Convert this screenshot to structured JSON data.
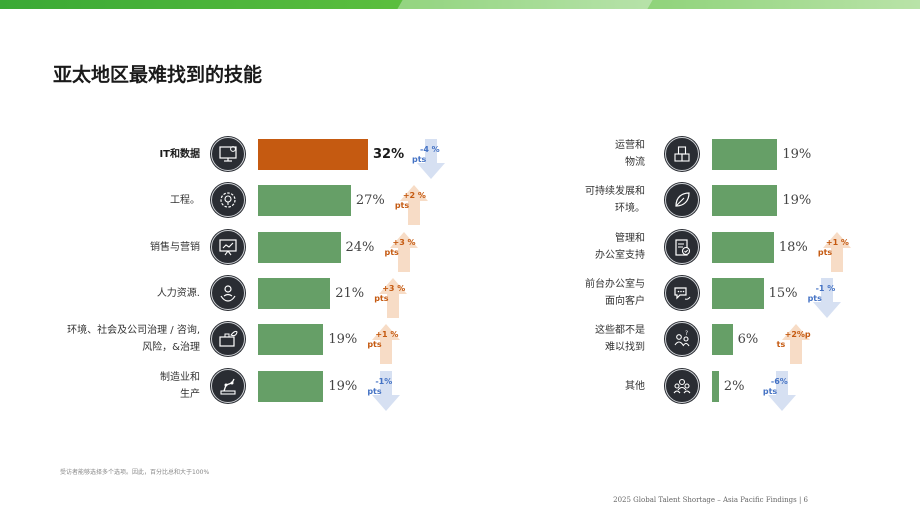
{
  "title": "亚太地区最难找到的技能",
  "footnote": "受访者能够选择多个选项。因此，百分比总和大于100%",
  "footer": "2025 Global Talent Shortage – Asia Pacific Findings | 6",
  "colors": {
    "bar": "#669f67",
    "highlight": "#c55a11",
    "up": "#c55a11",
    "down": "#4472c4",
    "icon_bg": "#2a2d33"
  },
  "chart_data": {
    "type": "bar",
    "orientation": "horizontal",
    "title": "亚太地区最难找到的技能",
    "left": [
      {
        "label": [
          "IT和数据"
        ],
        "icon": "computer-gear-icon",
        "value": 32,
        "pct": "32%",
        "delta": [
          "-4 %",
          "pts"
        ],
        "direction": "down",
        "highlight": true
      },
      {
        "label": [
          "工程。"
        ],
        "icon": "gear-bulb-icon",
        "value": 27,
        "pct": "27%",
        "delta": [
          "+2 %",
          "pts"
        ],
        "direction": "up"
      },
      {
        "label": [
          "销售与营销"
        ],
        "icon": "presentation-chart-icon",
        "value": 24,
        "pct": "24%",
        "delta": [
          "+3 %",
          "pts"
        ],
        "direction": "up"
      },
      {
        "label": [
          "人力资源."
        ],
        "icon": "person-hands-icon",
        "value": 21,
        "pct": "21%",
        "delta": [
          "+3 %",
          "pts"
        ],
        "direction": "up"
      },
      {
        "label": [
          "环境、社会及公司治理 / 咨询,",
          "风险，&治理"
        ],
        "icon": "briefcase-leaf-icon",
        "value": 19,
        "pct": "19%",
        "delta": [
          "+1 %",
          "pts"
        ],
        "direction": "up"
      },
      {
        "label": [
          "制造业和",
          "生产"
        ],
        "icon": "robot-arm-icon",
        "value": 19,
        "pct": "19%",
        "delta": [
          "-1%",
          "pts"
        ],
        "direction": "down"
      }
    ],
    "right": [
      {
        "label": [
          "运营和",
          "物流"
        ],
        "icon": "boxes-icon",
        "value": 19,
        "pct": "19%"
      },
      {
        "label": [
          "可持续发展和",
          "环境。"
        ],
        "icon": "leaf-icon",
        "value": 19,
        "pct": "19%"
      },
      {
        "label": [
          "管理和",
          "办公室支持"
        ],
        "icon": "clipboard-check-icon",
        "value": 18,
        "pct": "18%",
        "delta": [
          "+1 %",
          "pts"
        ],
        "direction": "up"
      },
      {
        "label": [
          "前台办公室与",
          "面向客户"
        ],
        "icon": "chat-headset-icon",
        "value": 15,
        "pct": "15%",
        "delta": [
          "-1 %",
          "pts"
        ],
        "direction": "down"
      },
      {
        "label": [
          "这些都不是",
          "难以找到"
        ],
        "icon": "people-question-icon",
        "value": 6,
        "pct": "6%",
        "delta": [
          "+2%p",
          "ts"
        ],
        "direction": "up"
      },
      {
        "label": [
          "其他"
        ],
        "icon": "group-icon",
        "value": 2,
        "pct": "2%",
        "delta": [
          "-6%",
          "pts"
        ],
        "direction": "down"
      }
    ]
  }
}
